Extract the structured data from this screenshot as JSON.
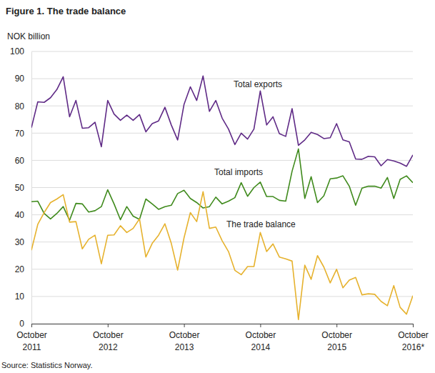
{
  "chart_data": {
    "type": "line",
    "title": "Figure 1. The trade balance",
    "y_label": "NOK billion",
    "source": "Source: Statistics Norway.",
    "categories": [
      "October 2011",
      null,
      null,
      null,
      null,
      null,
      null,
      null,
      null,
      null,
      null,
      null,
      "October 2012",
      null,
      null,
      null,
      null,
      null,
      null,
      null,
      null,
      null,
      null,
      null,
      "October 2013",
      null,
      null,
      null,
      null,
      null,
      null,
      null,
      null,
      null,
      null,
      null,
      "October 2014",
      null,
      null,
      null,
      null,
      null,
      null,
      null,
      null,
      null,
      null,
      null,
      "October 2015",
      null,
      null,
      null,
      null,
      null,
      null,
      null,
      null,
      null,
      null,
      null,
      "October 2016*"
    ],
    "series": [
      {
        "name": "Total exports",
        "color": "#5f2a86",
        "values": [
          72,
          81.5,
          81.3,
          83,
          86,
          90.7,
          76,
          82,
          71.8,
          72,
          74,
          65,
          82,
          77,
          74.7,
          76.6,
          74.7,
          76.8,
          70.5,
          73.5,
          74.5,
          79.5,
          73,
          67.5,
          80.5,
          87,
          82,
          91,
          78,
          82,
          75.5,
          71.5,
          65.8,
          70,
          67.8,
          71.5,
          85.5,
          73,
          76,
          69.8,
          68.8,
          79,
          65.5,
          67.5,
          70.3,
          69.5,
          68,
          68.3,
          73.5,
          67.5,
          66.8,
          60.5,
          60.4,
          61.5,
          61.3,
          58,
          60.3,
          59.8,
          59,
          57.8,
          62
        ]
      },
      {
        "name": "Total imports",
        "color": "#3f8a1c",
        "values": [
          44.8,
          45,
          40.5,
          38.5,
          40.5,
          43,
          38,
          44.2,
          44,
          41,
          41.5,
          43,
          49.2,
          44,
          38.2,
          43,
          39.5,
          38.3,
          45.8,
          44,
          42,
          43,
          43.5,
          47.8,
          49,
          46,
          44.5,
          42.5,
          43,
          46.5,
          44,
          45,
          46.3,
          51.8,
          46.8,
          50,
          52,
          46.7,
          46.7,
          45.3,
          45,
          56,
          64.2,
          46,
          54,
          44.5,
          47,
          53.2,
          53.5,
          54.3,
          50.5,
          43.5,
          49.8,
          50.5,
          50.5,
          49.8,
          53.7,
          46,
          53,
          54.3,
          51.8
        ]
      },
      {
        "name": "The trade balance",
        "color": "#e6b22e",
        "values": [
          27,
          36.5,
          40.8,
          44.5,
          45.8,
          47.4,
          37.3,
          37.5,
          27.5,
          31,
          32.5,
          22,
          32.5,
          32.6,
          36,
          33.5,
          35,
          38.5,
          24.5,
          29.5,
          32.5,
          36.7,
          29.5,
          19.7,
          31.5,
          40.8,
          37.5,
          48.5,
          35,
          35.5,
          30.5,
          26.5,
          19.6,
          18,
          21,
          21,
          33.5,
          26.5,
          29.3,
          24.5,
          23.8,
          23,
          1.5,
          21.5,
          16.3,
          25,
          20.8,
          15,
          20,
          13.2,
          16,
          17,
          10.6,
          11,
          10.8,
          8.2,
          6.6,
          14,
          6,
          3.5,
          10.3
        ]
      }
    ],
    "ylim": [
      0,
      100
    ],
    "yticks": [
      0,
      10,
      20,
      30,
      40,
      50,
      60,
      70,
      80,
      90,
      100
    ],
    "grid": true
  }
}
